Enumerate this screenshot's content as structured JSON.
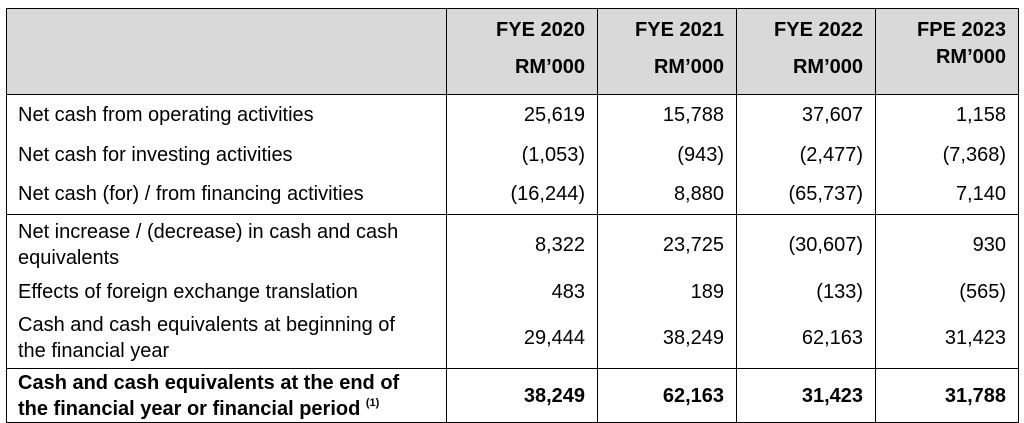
{
  "columns": [
    {
      "year": "FYE 2020",
      "unit": "RM’000"
    },
    {
      "year": "FYE 2021",
      "unit": "RM’000"
    },
    {
      "year": "FYE 2022",
      "unit": "RM’000"
    },
    {
      "year": "FPE 2023",
      "unit": "RM’000"
    }
  ],
  "rows": [
    {
      "label": "Net cash from operating activities",
      "values": [
        "25,619",
        "15,788",
        "37,607",
        "1,158"
      ]
    },
    {
      "label": "Net cash for investing activities",
      "values": [
        "(1,053)",
        "(943)",
        "(2,477)",
        "(7,368)"
      ]
    },
    {
      "label": "Net cash (for) / from financing activities",
      "values": [
        "(16,244)",
        "8,880",
        "(65,737)",
        "7,140"
      ]
    },
    {
      "label_line1": "Net increase / (decrease) in cash and cash",
      "label_line2": "equivalents",
      "values": [
        "8,322",
        "23,725",
        "(30,607)",
        "930"
      ]
    },
    {
      "label": "Effects of foreign exchange translation",
      "values": [
        "483",
        "189",
        "(133)",
        "(565)"
      ]
    },
    {
      "label_line1": "Cash and cash equivalents at beginning of",
      "label_line2": "the financial year",
      "values": [
        "29,444",
        "38,249",
        "62,163",
        "31,423"
      ]
    },
    {
      "label_line1": "Cash and cash equivalents at the end of",
      "label_line2": "the financial year or financial period",
      "footnote": "(1)",
      "values": [
        "38,249",
        "62,163",
        "31,423",
        "31,788"
      ]
    }
  ]
}
